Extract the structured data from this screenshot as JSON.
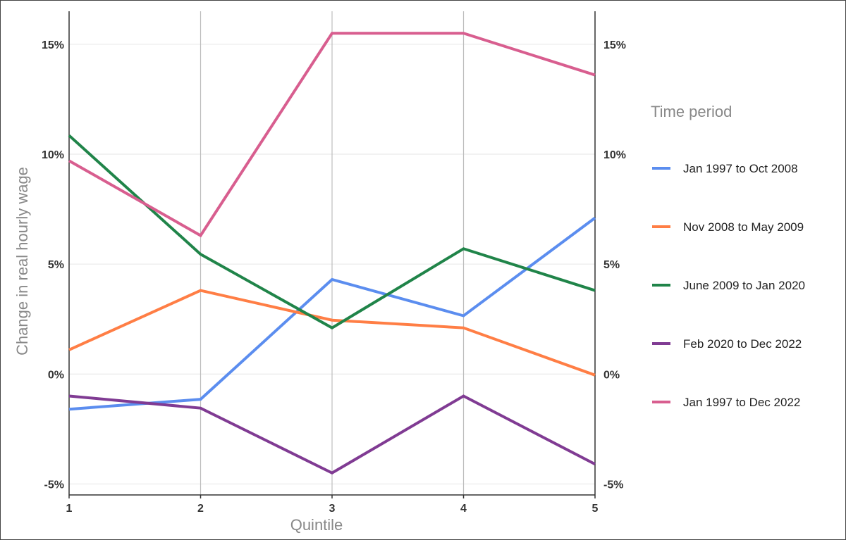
{
  "chart_data": {
    "type": "line",
    "xlabel": "Quintile",
    "ylabel": "Change in real hourly wage",
    "x": [
      1,
      2,
      3,
      4,
      5
    ],
    "x_tick_labels": [
      "1",
      "2",
      "3",
      "4",
      "5"
    ],
    "ylim": [
      -5.5,
      16.5
    ],
    "y_ticks": [
      -5,
      0,
      5,
      10,
      15
    ],
    "y_tick_labels_left": [
      "-5%",
      "0%",
      "5%",
      "10%",
      "15%"
    ],
    "y_tick_labels_right": [
      "-5%",
      "0%",
      "5%",
      "10%",
      "15%"
    ],
    "grid": true,
    "legend": {
      "title": "Time period",
      "position": "right"
    },
    "series": [
      {
        "name": "Jan 1997 to Oct 2008",
        "color": "#5b8def",
        "values": [
          -1.6,
          -1.15,
          4.3,
          2.65,
          7.1
        ]
      },
      {
        "name": "Nov 2008 to May 2009",
        "color": "#ff7e45",
        "values": [
          1.1,
          3.8,
          2.45,
          2.1,
          -0.05
        ]
      },
      {
        "name": "June 2009 to Jan 2020",
        "color": "#208449",
        "values": [
          10.85,
          5.45,
          2.1,
          5.7,
          3.8
        ]
      },
      {
        "name": "Feb 2020 to Dec 2022",
        "color": "#803b93",
        "values": [
          -1.0,
          -1.55,
          -4.5,
          -1.0,
          -4.1
        ]
      },
      {
        "name": "Jan 1997 to Dec 2022",
        "color": "#d85e8f",
        "values": [
          9.7,
          6.3,
          15.5,
          15.5,
          13.6
        ]
      }
    ]
  }
}
